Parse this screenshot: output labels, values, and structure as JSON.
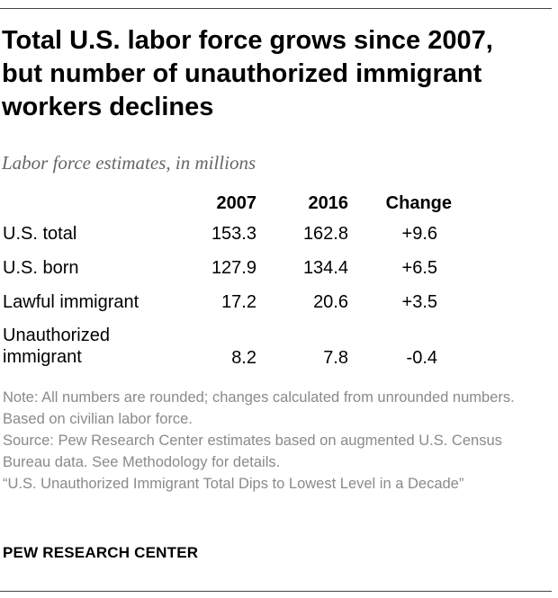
{
  "title_lines": [
    "Total U.S. labor force grows since 2007,",
    "but number of unauthorized immigrant",
    "workers declines"
  ],
  "subtitle": "Labor force estimates, in millions",
  "chart_data": {
    "type": "table",
    "title": "Total U.S. labor force grows since 2007, but number of unauthorized immigrant workers declines",
    "subtitle": "Labor force estimates, in millions",
    "columns": [
      "2007",
      "2016",
      "Change"
    ],
    "rows": [
      {
        "label": "U.S. total",
        "label_lines": [
          "U.S. total"
        ],
        "values": [
          "153.3",
          "162.8",
          "+9.6"
        ]
      },
      {
        "label": "U.S. born",
        "label_lines": [
          "U.S. born"
        ],
        "values": [
          "127.9",
          "134.4",
          "+6.5"
        ]
      },
      {
        "label": "Lawful immigrant",
        "label_lines": [
          "Lawful immigrant"
        ],
        "values": [
          "17.2",
          "20.6",
          "+3.5"
        ]
      },
      {
        "label": "Unauthorized immigrant",
        "label_lines": [
          "Unauthorized",
          "immigrant"
        ],
        "values": [
          "8.2",
          "7.8",
          "-0.4"
        ]
      }
    ]
  },
  "footnotes": {
    "note": "Note: All numbers are rounded; changes calculated from unrounded numbers. Based on civilian labor force.",
    "source": "Source: Pew Research Center estimates based on augmented U.S. Census Bureau data. See Methodology for details.",
    "report": "“U.S. Unauthorized Immigrant Total Dips to Lowest Level in a Decade”"
  },
  "source_org": "PEW RESEARCH CENTER",
  "colors": {
    "text": "#000000",
    "subtitle": "#666666",
    "footnote": "#8a8a8a",
    "rule": "#444444"
  }
}
